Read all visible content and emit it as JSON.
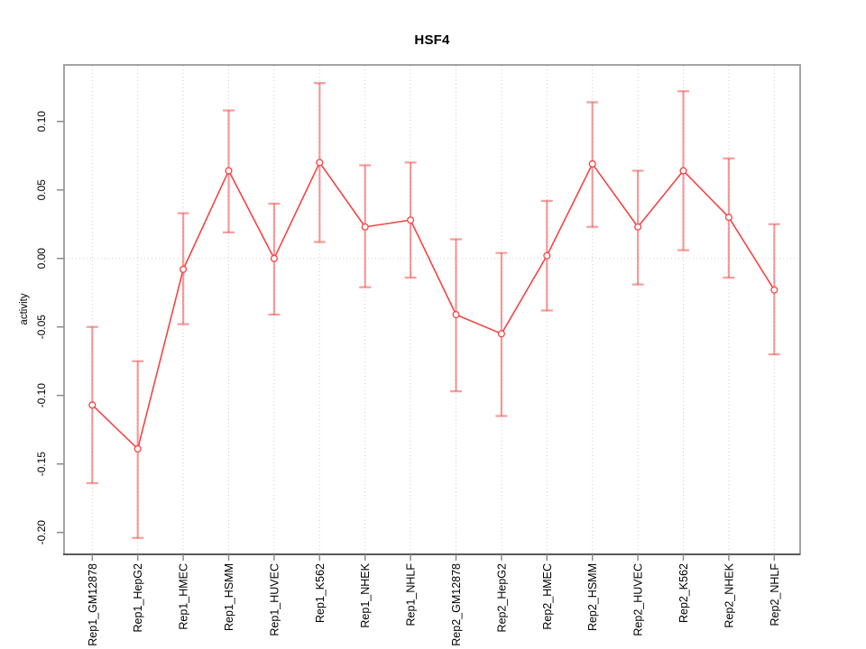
{
  "window": {
    "background": "#ffffff"
  },
  "chart_data": {
    "type": "line",
    "title": "HSF4",
    "xlabel": "",
    "ylabel": "activity",
    "legend": "none",
    "grid": {
      "vertical_dotted_per_category": true,
      "horizontal_dotted_zero_line": true
    },
    "categories": [
      "Rep1_GM12878",
      "Rep1_HepG2",
      "Rep1_HMEC",
      "Rep1_HSMM",
      "Rep1_HUVEC",
      "Rep1_K562",
      "Rep1_NHEK",
      "Rep1_NHLF",
      "Rep2_GM12878",
      "Rep2_HepG2",
      "Rep2_HMEC",
      "Rep2_HSMM",
      "Rep2_HUVEC",
      "Rep2_K562",
      "Rep2_NHEK",
      "Rep2_NHLF"
    ],
    "series": [
      {
        "name": "activity",
        "marker": "open-circle",
        "values": [
          -0.107,
          -0.139,
          -0.008,
          0.064,
          0.0,
          0.07,
          0.023,
          0.028,
          -0.041,
          -0.055,
          0.002,
          0.069,
          0.023,
          0.064,
          0.03,
          -0.023
        ],
        "error_low": [
          -0.164,
          -0.204,
          -0.048,
          0.019,
          -0.041,
          0.012,
          -0.021,
          -0.014,
          -0.097,
          -0.115,
          -0.038,
          0.023,
          -0.019,
          0.006,
          -0.014,
          -0.07
        ],
        "error_high": [
          -0.05,
          -0.075,
          0.033,
          0.108,
          0.04,
          0.128,
          0.068,
          0.07,
          0.014,
          0.004,
          0.042,
          0.114,
          0.064,
          0.122,
          0.073,
          0.025
        ]
      }
    ],
    "yticks": [
      {
        "label": "0.10",
        "value": 0.1
      },
      {
        "label": "0.05",
        "value": 0.05
      },
      {
        "label": "0.00",
        "value": 0.0
      },
      {
        "label": "-0.05",
        "value": -0.05
      },
      {
        "label": "-0.10",
        "value": -0.1
      },
      {
        "label": "-0.15",
        "value": -0.15
      },
      {
        "label": "-0.20",
        "value": -0.2
      }
    ],
    "ylim": [
      -0.215,
      0.142
    ],
    "colors": {
      "series_line": "#f54444",
      "marker_stroke": "#f54444",
      "error_bar": "rgba(243,58,58,0.5)",
      "gridline": "#cdcdcd",
      "box_border": "#9a9a9a",
      "axis_line": "#3f3f3f",
      "tick": "#8a8a8a",
      "text": "#000000"
    }
  }
}
